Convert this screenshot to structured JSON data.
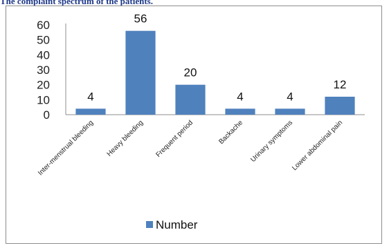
{
  "caption": "The complaint spectrum of the patients.",
  "chart_data": {
    "type": "bar",
    "title": "",
    "xlabel": "",
    "ylabel": "",
    "categories": [
      "Inter-menstrual bleeding",
      "Heavy bleeding",
      "Frequent period",
      "Backache",
      "Urinary symptoms",
      "Lower abdominal pain"
    ],
    "series": [
      {
        "name": "Number",
        "values": [
          4,
          56,
          20,
          4,
          4,
          12
        ],
        "color": "#4f81bd"
      }
    ],
    "ylim": [
      0,
      60
    ],
    "yticks": [
      0,
      10,
      20,
      30,
      40,
      50,
      60
    ],
    "grid": false,
    "legend": "bottom"
  }
}
